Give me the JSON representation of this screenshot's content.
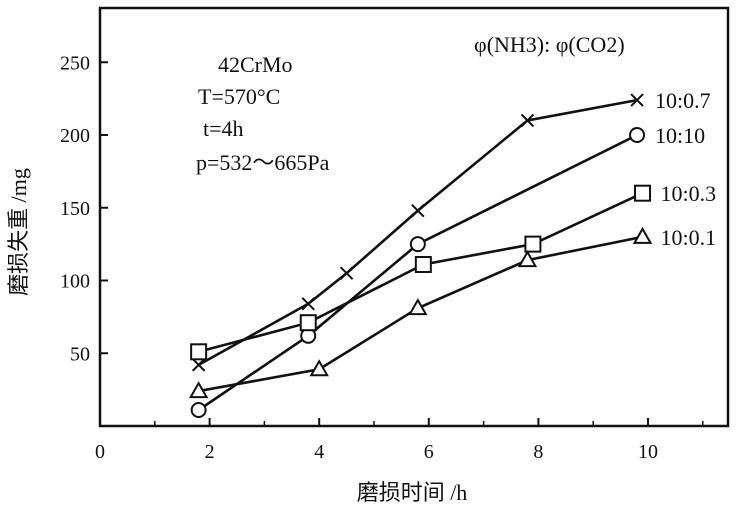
{
  "chart_data": {
    "type": "line",
    "title": "",
    "xlabel": "磨损时间 /h",
    "ylabel": "磨损失重 /mg",
    "xlim": [
      0,
      12
    ],
    "ylim": [
      0,
      280
    ],
    "x_ticks": [
      0,
      2,
      4,
      6,
      8,
      10
    ],
    "y_ticks": [
      50,
      100,
      150,
      200,
      250
    ],
    "grid": false,
    "annotations": {
      "material": "42CrMo",
      "temperature": "T=570°C",
      "time": "t=4h",
      "pressure": "p=532～665Pa"
    },
    "legend_header": "φ(NH3): φ(CO2)",
    "series": [
      {
        "name": "10:0.7",
        "marker": "x",
        "x": [
          1.8,
          3.8,
          4.5,
          5.8,
          7.8,
          9.8
        ],
        "y": [
          42,
          84,
          105,
          148,
          210,
          224
        ]
      },
      {
        "name": "10:10",
        "marker": "circle",
        "x": [
          1.8,
          3.8,
          5.8,
          9.8
        ],
        "y": [
          11,
          62,
          125,
          200
        ]
      },
      {
        "name": "10:0.3",
        "marker": "square",
        "x": [
          1.8,
          3.8,
          5.9,
          7.9,
          9.9
        ],
        "y": [
          51,
          71,
          111,
          125,
          160
        ]
      },
      {
        "name": "10:0.1",
        "marker": "triangle",
        "x": [
          1.8,
          4.0,
          5.8,
          7.8,
          9.9
        ],
        "y": [
          24,
          39,
          81,
          114,
          130
        ]
      }
    ]
  }
}
